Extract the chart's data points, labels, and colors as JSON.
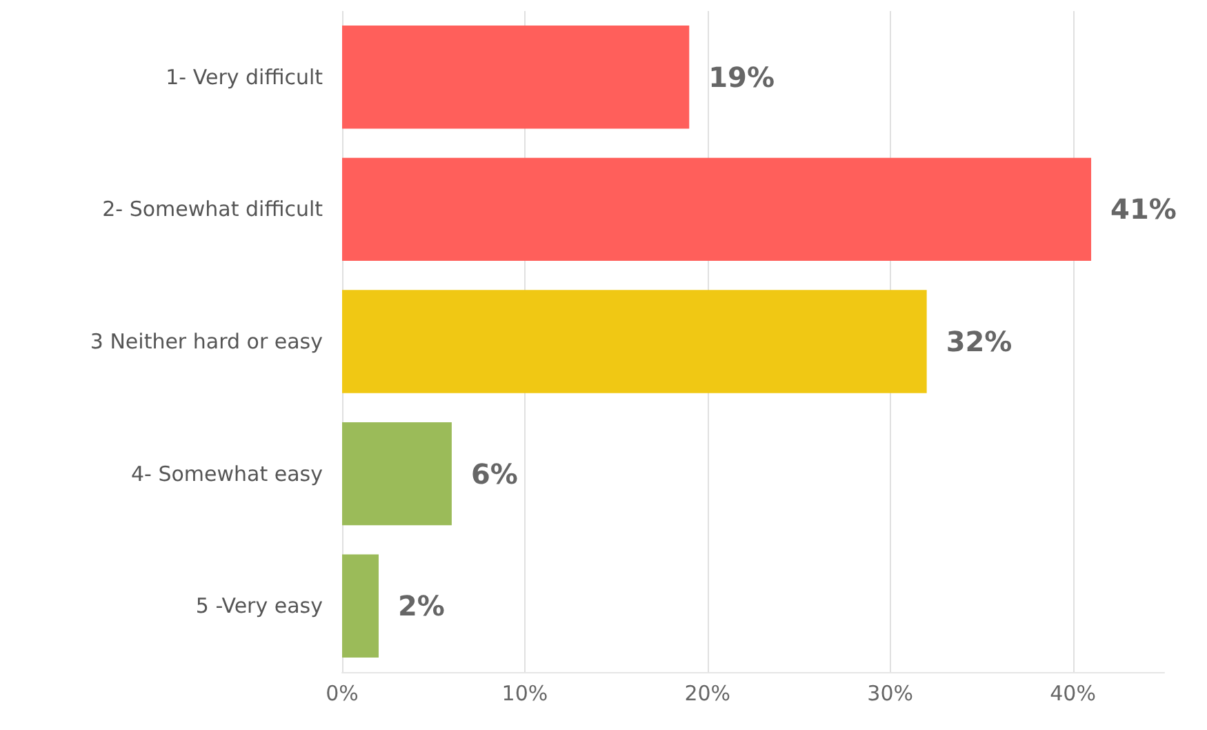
{
  "chart_data": {
    "type": "bar",
    "orientation": "horizontal",
    "categories": [
      "1- Very difficult",
      "2- Somewhat difficult",
      "3 Neither hard or easy",
      "4- Somewhat easy",
      "5 -Very easy"
    ],
    "values": [
      19,
      41,
      32,
      6,
      2
    ],
    "colors": [
      "#ff5f5b",
      "#ff5f5b",
      "#f0c814",
      "#9bbb59",
      "#9bbb59"
    ],
    "value_labels": [
      "19%",
      "41%",
      "32%",
      "6%",
      "2%"
    ],
    "xlim": [
      0,
      45
    ],
    "xticks": [
      {
        "value": 0,
        "label": "0%"
      },
      {
        "value": 10,
        "label": "10%"
      },
      {
        "value": 20,
        "label": "20%"
      },
      {
        "value": 30,
        "label": "30%"
      },
      {
        "value": 40,
        "label": "40%"
      }
    ],
    "grid": "x"
  }
}
